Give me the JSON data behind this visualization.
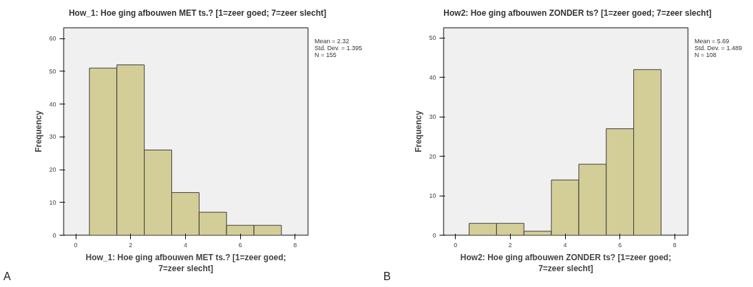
{
  "chart_data": [
    {
      "type": "histogram",
      "title": "How_1: Hoe ging afbouwen MET ts.? [1=zeer goed; 7=zeer slecht]",
      "xlabel": "How_1: Hoe ging afbouwen MET ts.? [1=zeer goed; 7=zeer slecht]",
      "ylabel": "Frequency",
      "bins": [
        0.5,
        1.5,
        2.5,
        3.5,
        4.5,
        5.5,
        6.5,
        7.5
      ],
      "values": [
        51,
        52,
        26,
        13,
        7,
        3,
        3
      ],
      "color": "#d3ce97",
      "xlim": [
        -0.44,
        8.47
      ],
      "ylim": [
        0,
        63.3
      ],
      "xticks": [
        0,
        2,
        4,
        6,
        8
      ],
      "yticks": [
        0,
        10,
        20,
        30,
        40,
        50,
        60
      ],
      "grid": false,
      "annotations": [
        "Mean = 2.32",
        "Std. Dev. = 1.395",
        "N = 155",
        "A"
      ]
    },
    {
      "type": "histogram",
      "title": "How2: Hoe ging afbouwen ZONDER ts? [1=zeer goed; 7=zeer slecht]",
      "xlabel": "How2: Hoe ging afbouwen ZONDER ts? [1=zeer goed; 7=zeer slecht]",
      "ylabel": "Frequency",
      "bins": [
        0.5,
        1.5,
        2.5,
        3.5,
        4.5,
        5.5,
        6.5,
        7.5
      ],
      "values": [
        3,
        3,
        1,
        14,
        18,
        27,
        42
      ],
      "color": "#d3ce97",
      "xlim": [
        -0.43,
        8.48
      ],
      "ylim": [
        0,
        52.6
      ],
      "xticks": [
        0,
        2,
        4,
        6,
        8
      ],
      "yticks": [
        0,
        10,
        20,
        30,
        40,
        50
      ],
      "grid": false,
      "annotations": [
        "Mean = 5.69",
        "Std. Dev. = 1.489",
        "N = 108",
        "B"
      ]
    }
  ]
}
